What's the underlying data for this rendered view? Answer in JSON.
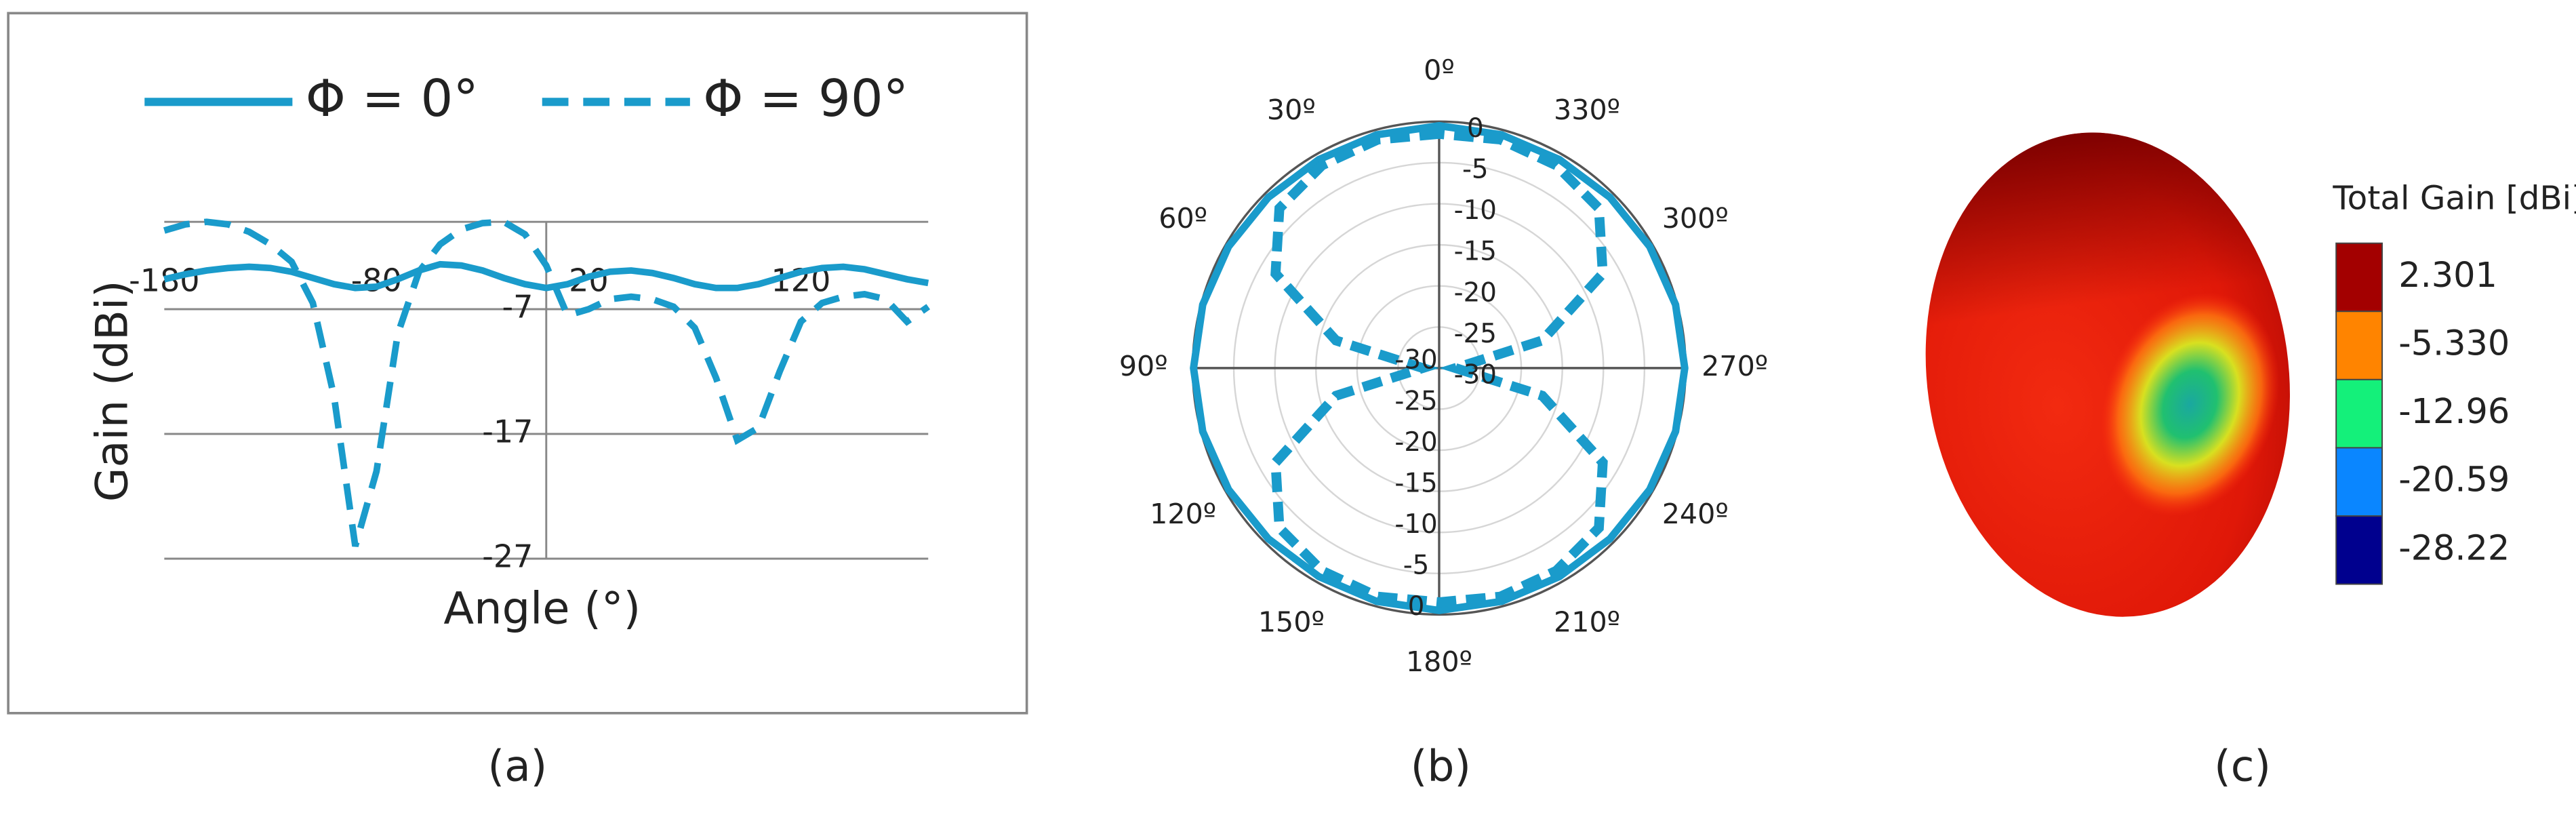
{
  "chart_data": [
    {
      "type": "line",
      "caption": "(a)",
      "x_label": "Angle (°)",
      "y_label": "Gain (dBi)",
      "x": [
        -180,
        -170,
        -160,
        -150,
        -140,
        -130,
        -120,
        -110,
        -100,
        -90,
        -80,
        -70,
        -60,
        -50,
        -40,
        -30,
        -20,
        -10,
        0,
        10,
        20,
        30,
        40,
        50,
        60,
        70,
        80,
        90,
        100,
        110,
        120,
        130,
        140,
        150,
        160,
        170,
        180
      ],
      "series": [
        {
          "name": "Φ = 0°",
          "color": "#1a9bcb",
          "dashed": false,
          "values": [
            -4.6,
            -4.2,
            -3.9,
            -3.7,
            -3.6,
            -3.7,
            -4.0,
            -4.5,
            -5.0,
            -5.3,
            -5.2,
            -4.6,
            -3.9,
            -3.4,
            -3.5,
            -3.9,
            -4.5,
            -5.0,
            -5.3,
            -5.0,
            -4.4,
            -4.0,
            -3.9,
            -4.1,
            -4.5,
            -5.0,
            -5.3,
            -5.3,
            -5.0,
            -4.5,
            -4.0,
            -3.7,
            -3.6,
            -3.8,
            -4.2,
            -4.6,
            -4.9
          ]
        },
        {
          "name": "Φ = 90°",
          "color": "#1a9bcb",
          "dashed": true,
          "values": [
            -0.7,
            -0.2,
            0,
            -0.2,
            -0.8,
            -1.8,
            -3.2,
            -6.5,
            -14,
            -26,
            -20,
            -9,
            -4,
            -1.8,
            -0.6,
            -0.1,
            0,
            -1,
            -3.5,
            -7.5,
            -7,
            -6.2,
            -6,
            -6.2,
            -6.8,
            -8.5,
            -12.5,
            -17.5,
            -16.5,
            -12,
            -8,
            -6.5,
            -6,
            -5.8,
            -6.2,
            -8,
            -6.8
          ]
        }
      ],
      "xlim": [
        -180,
        180
      ],
      "xticks": [
        -180,
        -80,
        20,
        120
      ],
      "ylim": [
        -27,
        0
      ],
      "yticks": [
        -27,
        -17,
        -7
      ],
      "grid": true,
      "legend": "top"
    },
    {
      "type": "polar",
      "caption": "(b)",
      "theta": [
        0,
        15,
        30,
        45,
        60,
        75,
        90,
        105,
        120,
        135,
        150,
        165,
        180,
        195,
        210,
        225,
        240,
        255,
        270,
        285,
        300,
        315,
        330,
        345
      ],
      "series": [
        {
          "color": "#1a9bcb",
          "dashed": false,
          "values": [
            -0.5,
            -0.6,
            -0.7,
            -0.6,
            -0.4,
            -0.2,
            -0.1,
            -0.2,
            -0.4,
            -0.6,
            -0.7,
            -0.6,
            -0.5,
            -0.6,
            -0.7,
            -0.6,
            -0.4,
            -0.2,
            -0.1,
            -0.2,
            -0.4,
            -0.6,
            -0.7,
            -0.6
          ]
        },
        {
          "color": "#1a9bcb",
          "dashed": true,
          "values": [
            -1.5,
            -1.2,
            -1.5,
            -2.5,
            -7,
            -17,
            -28,
            -17,
            -7,
            -2.5,
            -1.5,
            -1.2,
            -1.5,
            -1.2,
            -1.5,
            -2.5,
            -7,
            -17,
            -28,
            -17,
            -7,
            -2.5,
            -1.5,
            -1.2
          ]
        }
      ],
      "rlim": [
        -30,
        0
      ],
      "rticks": [
        0,
        -5,
        -10,
        -15,
        -20,
        -25,
        -30
      ],
      "theta_ticks": [
        {
          "value": 0,
          "label": "0º"
        },
        {
          "value": 30,
          "label": "30º"
        },
        {
          "value": 60,
          "label": "60º"
        },
        {
          "value": 90,
          "label": "90º"
        },
        {
          "value": 120,
          "label": "120º"
        },
        {
          "value": 150,
          "label": "150º"
        },
        {
          "value": 180,
          "label": "180º"
        },
        {
          "value": 210,
          "label": "210º"
        },
        {
          "value": 240,
          "label": "240º"
        },
        {
          "value": 270,
          "label": "270º"
        },
        {
          "value": 300,
          "label": "300º"
        },
        {
          "value": 330,
          "label": "330º"
        }
      ]
    },
    {
      "type": "colorbar",
      "caption": "(c)",
      "title": "Total Gain [dBi]",
      "values": [
        2.301,
        -5.33,
        -12.96,
        -20.59,
        -28.22
      ],
      "value_labels": [
        "2.301",
        "-5.330",
        "-12.96",
        "-20.59",
        "-28.22"
      ],
      "colors": [
        "#a30000",
        "#ff8400",
        "#14f07a",
        "#0a86ff",
        "#00008e"
      ]
    }
  ]
}
